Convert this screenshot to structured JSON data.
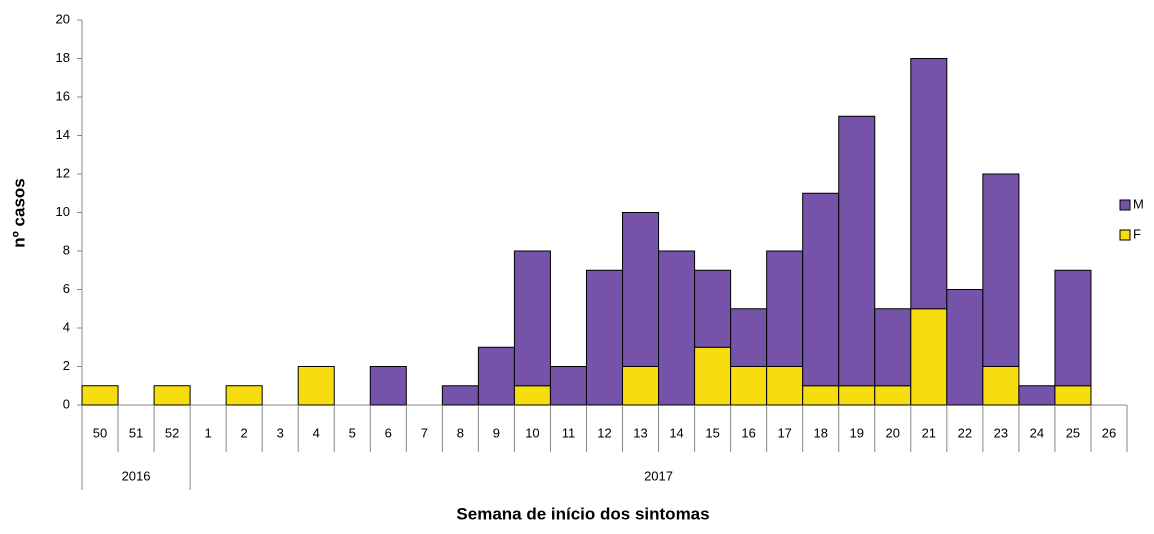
{
  "chart_data": {
    "type": "bar",
    "stacked": true,
    "y_label": "nº casos",
    "x_label": "Semana de início dos sintomas",
    "categories": [
      "50",
      "51",
      "52",
      "1",
      "2",
      "3",
      "4",
      "5",
      "6",
      "7",
      "8",
      "9",
      "10",
      "11",
      "12",
      "13",
      "14",
      "15",
      "16",
      "17",
      "18",
      "19",
      "20",
      "21",
      "22",
      "23",
      "24",
      "25",
      "26"
    ],
    "groups": [
      {
        "label": "2016",
        "size": 3
      },
      {
        "label": "2017",
        "size": 26
      }
    ],
    "series": [
      {
        "name": "F",
        "color": "#f7dc10",
        "values": [
          1,
          0,
          1,
          0,
          1,
          0,
          2,
          0,
          0,
          0,
          0,
          0,
          1,
          0,
          0,
          2,
          0,
          3,
          2,
          2,
          1,
          1,
          1,
          5,
          0,
          2,
          0,
          1,
          0
        ]
      },
      {
        "name": "M",
        "color": "#7553a8",
        "values": [
          0,
          0,
          0,
          0,
          0,
          0,
          0,
          0,
          2,
          0,
          1,
          3,
          7,
          2,
          7,
          8,
          8,
          4,
          3,
          6,
          10,
          14,
          4,
          13,
          6,
          10,
          1,
          6,
          0
        ]
      }
    ],
    "ylim": [
      0,
      20
    ],
    "yticks": [
      0,
      2,
      4,
      6,
      8,
      10,
      12,
      14,
      16,
      18,
      20
    ],
    "grid": false,
    "legend": "right"
  }
}
